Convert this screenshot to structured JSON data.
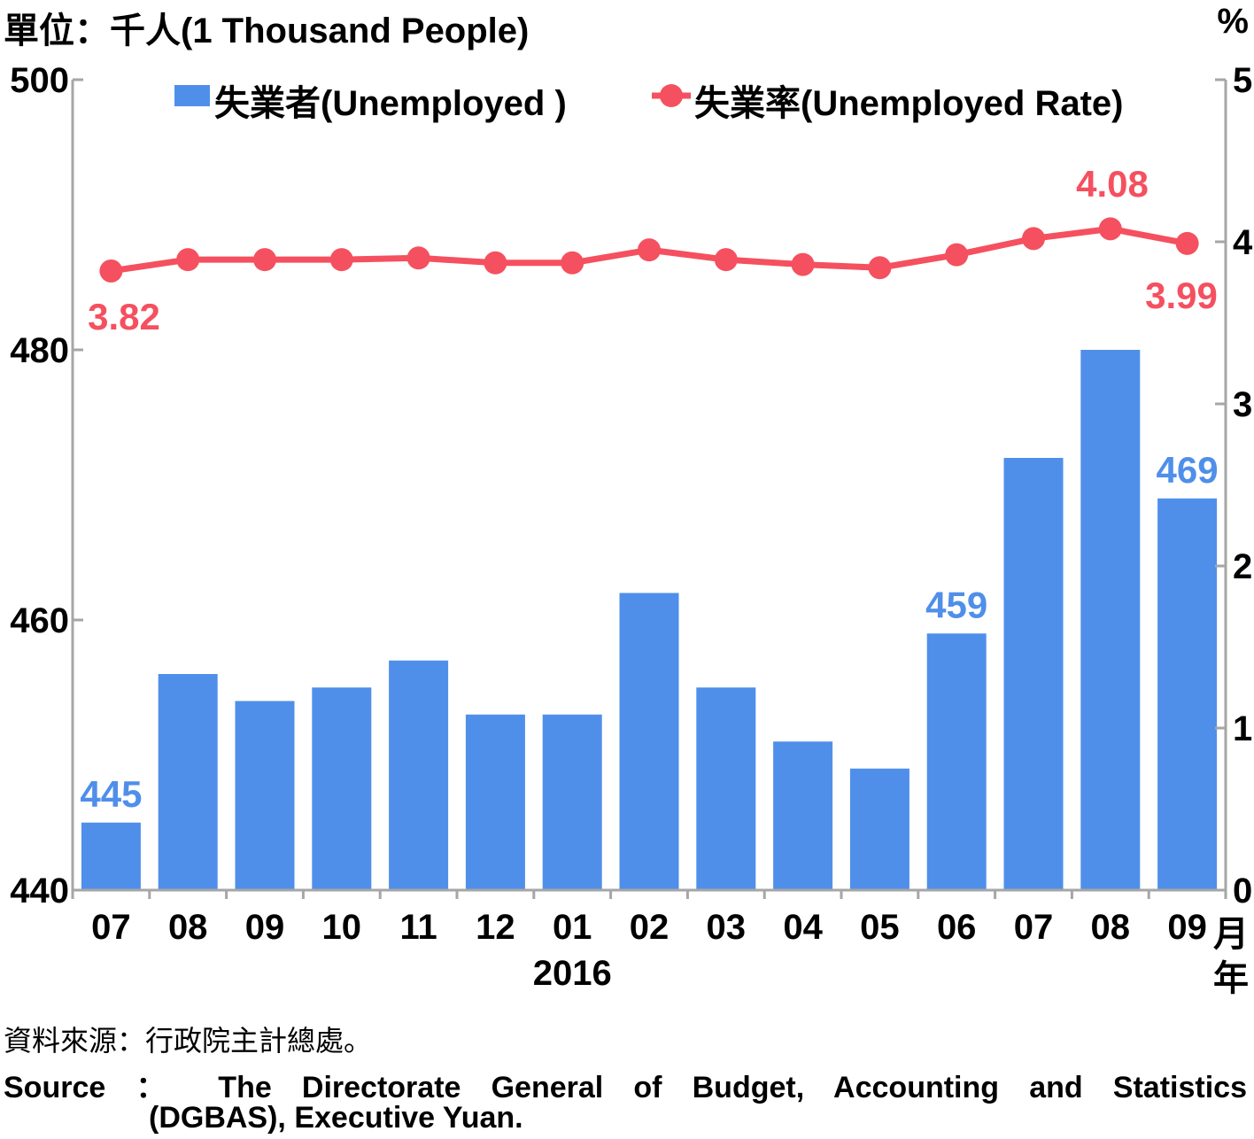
{
  "header": {
    "unit_left": "單位：千人(1 Thousand People)",
    "unit_right": "%",
    "month_suffix": "月",
    "year_suffix": "年"
  },
  "footer": {
    "source_zh": "資料來源：行政院主計總處。",
    "source_en_line1": "Source ： The Directorate General of Budget, Accounting and Statistics",
    "source_en_line2": "(DGBAS), Executive Yuan."
  },
  "chart_data": {
    "type": "bar",
    "categories": [
      "07",
      "08",
      "09",
      "10",
      "11",
      "12",
      "01",
      "02",
      "03",
      "04",
      "05",
      "06",
      "07",
      "08",
      "09"
    ],
    "year_label": "2016",
    "year_label_under_category_index": 6,
    "series": [
      {
        "name": "失業者(Unemployed )",
        "type": "bar",
        "axis": "left",
        "color": "#4f8fea",
        "values": [
          445,
          456,
          454,
          455,
          457,
          453,
          453,
          462,
          455,
          451,
          449,
          459,
          472,
          480,
          469
        ],
        "data_labels": {
          "0": "445",
          "11": "459",
          "14": "469"
        }
      },
      {
        "name": "失業率(Unemployed Rate)",
        "type": "line",
        "axis": "right",
        "color": "#f5505f",
        "values": [
          3.82,
          3.89,
          3.89,
          3.89,
          3.9,
          3.87,
          3.87,
          3.95,
          3.89,
          3.86,
          3.84,
          3.92,
          4.02,
          4.08,
          3.99
        ],
        "data_labels": {
          "0": "3.82",
          "13": "4.08",
          "14": "3.99"
        }
      }
    ],
    "y_left": {
      "min": 440,
      "max": 500,
      "ticks": [
        "440",
        "460",
        "480",
        "500"
      ]
    },
    "y_right": {
      "min": 0,
      "max": 5,
      "ticks": [
        "0",
        "1",
        "2",
        "3",
        "4",
        "5"
      ]
    },
    "legend": "top",
    "grid": false
  }
}
